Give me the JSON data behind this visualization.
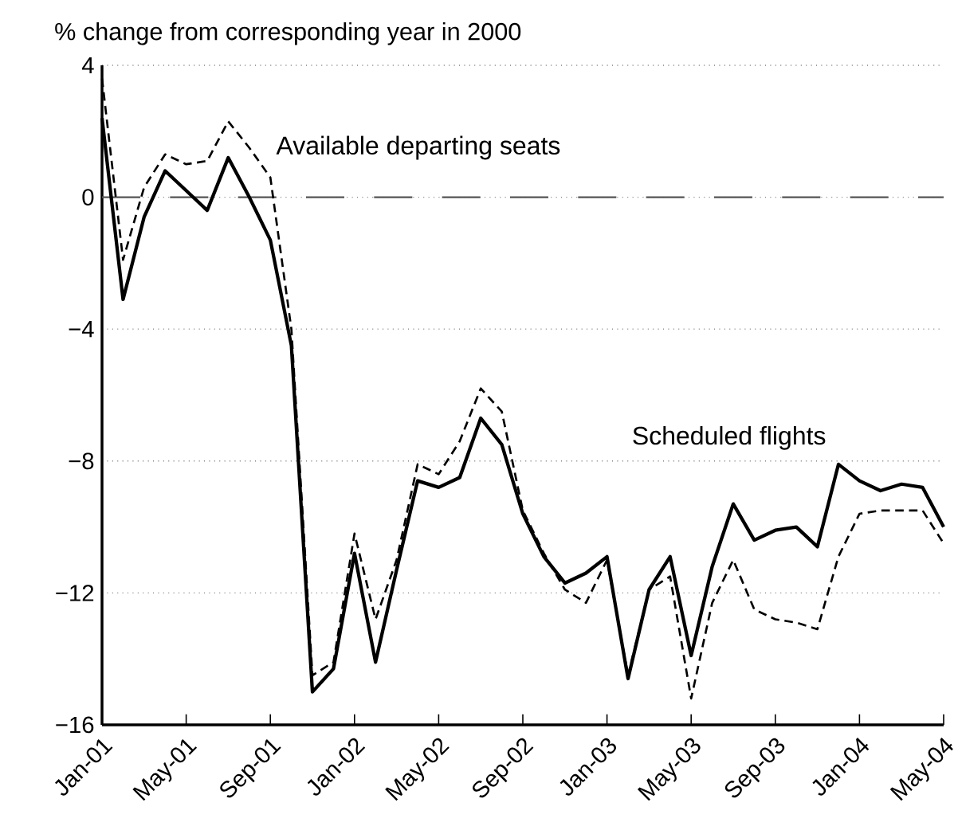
{
  "chart_data": {
    "type": "line",
    "ylabel": "% change from corresponding year in 2000",
    "x": [
      "2001-01",
      "2001-02",
      "2001-03",
      "2001-04",
      "2001-05",
      "2001-06",
      "2001-07",
      "2001-08",
      "2001-09",
      "2001-10",
      "2001-11",
      "2001-12",
      "2002-01",
      "2002-02",
      "2002-03",
      "2002-04",
      "2002-05",
      "2002-06",
      "2002-07",
      "2002-08",
      "2002-09",
      "2002-10",
      "2002-11",
      "2002-12",
      "2003-01",
      "2003-02",
      "2003-03",
      "2003-04",
      "2003-05",
      "2003-06",
      "2003-07",
      "2003-08",
      "2003-09",
      "2003-10",
      "2003-11",
      "2003-12",
      "2004-01",
      "2004-02",
      "2004-03",
      "2004-04",
      "2004-05"
    ],
    "series": [
      {
        "name": "Available departing seats",
        "color": "#000000",
        "line_style": "dashed",
        "values": [
          3.6,
          -1.9,
          0.3,
          1.3,
          1.0,
          1.1,
          2.3,
          1.5,
          0.6,
          -4.0,
          -14.5,
          -14.1,
          -10.2,
          -12.8,
          -11.0,
          -8.1,
          -8.4,
          -7.4,
          -5.8,
          -6.5,
          -9.5,
          -10.8,
          -11.9,
          -12.3,
          -11.0,
          -14.5,
          -11.9,
          -11.5,
          -15.2,
          -12.3,
          -11.0,
          -12.5,
          -12.8,
          -12.9,
          -13.1,
          -10.9,
          -9.6,
          -9.5,
          -9.5,
          -9.5,
          -10.5
        ]
      },
      {
        "name": "Scheduled flights",
        "color": "#000000",
        "line_style": "solid",
        "values": [
          2.4,
          -3.1,
          -0.6,
          0.8,
          0.2,
          -0.4,
          1.2,
          0.0,
          -1.3,
          -4.5,
          -15.0,
          -14.3,
          -10.8,
          -14.1,
          -11.3,
          -8.6,
          -8.8,
          -8.5,
          -6.7,
          -7.5,
          -9.6,
          -10.9,
          -11.7,
          -11.4,
          -10.9,
          -14.6,
          -11.9,
          -10.9,
          -13.9,
          -11.2,
          -9.3,
          -10.4,
          -10.1,
          -10.0,
          -10.6,
          -8.1,
          -8.6,
          -8.9,
          -8.7,
          -8.8,
          -10.0
        ]
      }
    ],
    "xlim": [
      "2001-01",
      "2004-05"
    ],
    "xticks": [
      {
        "value": "2001-01",
        "label": "Jan-01"
      },
      {
        "value": "2001-05",
        "label": "May-01"
      },
      {
        "value": "2001-09",
        "label": "Sep-01"
      },
      {
        "value": "2002-01",
        "label": "Jan-02"
      },
      {
        "value": "2002-05",
        "label": "May-02"
      },
      {
        "value": "2002-09",
        "label": "Sep-02"
      },
      {
        "value": "2003-01",
        "label": "Jan-03"
      },
      {
        "value": "2003-05",
        "label": "May-03"
      },
      {
        "value": "2003-09",
        "label": "Sep-03"
      },
      {
        "value": "2004-01",
        "label": "Jan-04"
      },
      {
        "value": "2004-05",
        "label": "May-04"
      }
    ],
    "ylim": [
      -16,
      4
    ],
    "yticks": [
      {
        "value": -16,
        "label": "−16"
      },
      {
        "value": -12,
        "label": "−12"
      },
      {
        "value": -8,
        "label": "−8"
      },
      {
        "value": -4,
        "label": "−4"
      },
      {
        "value": 0,
        "label": "0"
      },
      {
        "value": 4,
        "label": "4"
      }
    ],
    "grid": "y",
    "ref_lines": [
      {
        "axis": "y",
        "value": 0,
        "color": "#555555",
        "line_style": "dashed"
      }
    ],
    "legend": false
  }
}
